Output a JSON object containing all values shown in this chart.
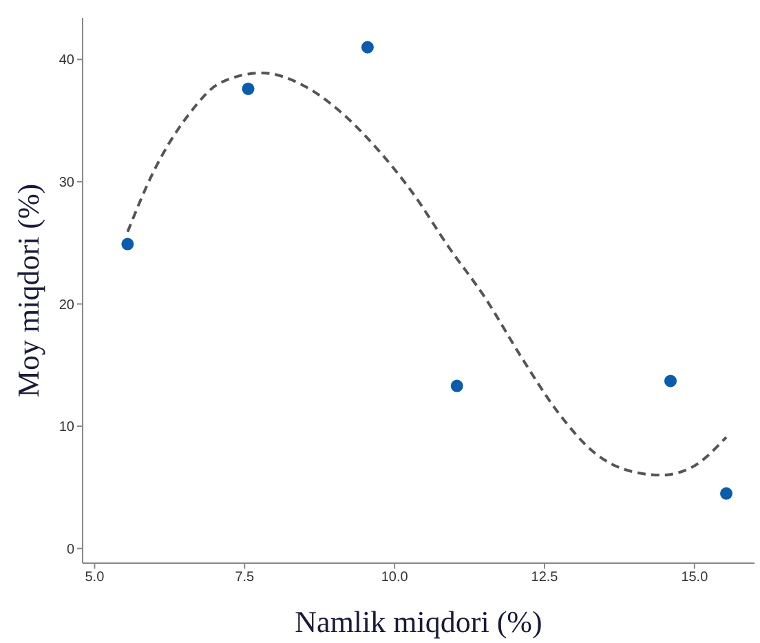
{
  "chart_data": {
    "type": "scatter",
    "xlabel": "Namlik miqdori (%)",
    "ylabel": "Moy miqdori (%)",
    "xlim": [
      4.8,
      16.0
    ],
    "xticks": [
      {
        "value": 5,
        "label": "5.0"
      },
      {
        "value": 7.5,
        "label": "7.5"
      },
      {
        "value": 10,
        "label": "10.0"
      },
      {
        "value": 12.5,
        "label": "12.5"
      },
      {
        "value": 15,
        "label": "15.0"
      }
    ],
    "ylim": [
      -1.2,
      43.4
    ],
    "yticks": [
      0,
      10,
      20,
      30,
      40
    ],
    "grid": false,
    "series": [
      {
        "color": "#0b5cad",
        "marker": "circle",
        "x": [
          5.55,
          7.56,
          9.55,
          11.04,
          14.6,
          15.53
        ],
        "values": [
          24.9,
          37.6,
          41.0,
          13.3,
          13.7,
          4.5
        ]
      },
      {
        "type": "line",
        "color": "#555555",
        "line_style": "dashed",
        "marker": "none",
        "x": [
          5.55,
          5.96,
          6.57,
          7.1,
          7.79,
          8.47,
          9.08,
          9.69,
          10.3,
          10.91,
          11.51,
          12.12,
          12.73,
          13.34,
          13.95,
          14.45,
          14.94,
          15.53
        ],
        "values": [
          25.9,
          30.6,
          35.5,
          38.1,
          38.9,
          37.9,
          35.8,
          32.8,
          29.1,
          24.6,
          20.5,
          15.6,
          11.1,
          7.8,
          6.3,
          6.0,
          6.6,
          9.1
        ]
      }
    ]
  }
}
